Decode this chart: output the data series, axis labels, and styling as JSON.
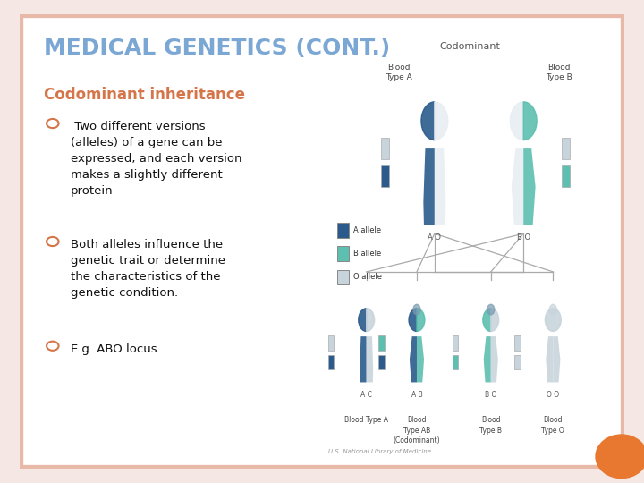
{
  "title": "MEDICAL GENETICS (CONT.)",
  "subtitle": "Codominant inheritance",
  "title_color": "#7ba7d4",
  "subtitle_color": "#d4754a",
  "bg_color": "#ffffff",
  "outer_bg_color": "#f5e8e4",
  "border_color": "#e8b8a8",
  "border_lw": 6,
  "bullet_color": "#d4754a",
  "text_color": "#111111",
  "bullet_points": [
    " Two different versions\n(alleles) of a gene can be\nexpressed, and each version\nmakes a slightly different\nprotein",
    "Both alleles influence the\ngenetic trait or determine\nthe characteristics of the\ngenetic condition.",
    "E.g. ABO locus"
  ],
  "orange_circle_color": "#e87830",
  "dark_blue": "#2a5b8c",
  "teal": "#5cbfb0",
  "light_gray": "#c8d4dc",
  "mid_blue": "#4a8ab0"
}
